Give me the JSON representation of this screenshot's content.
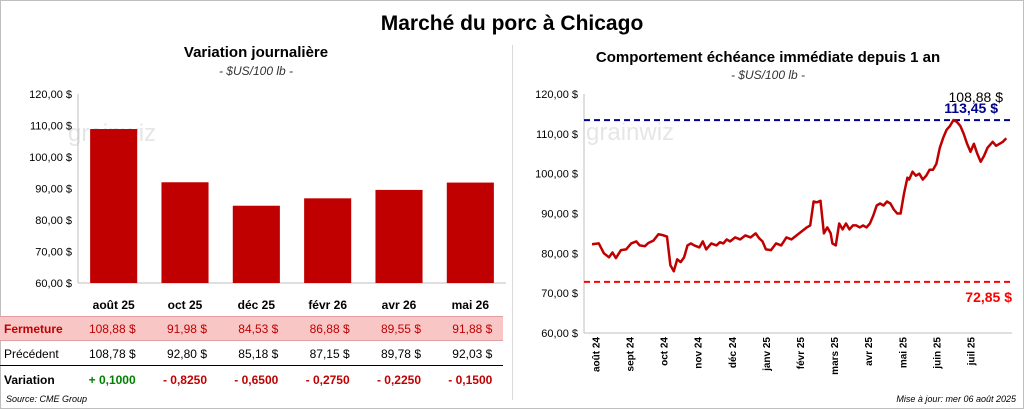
{
  "title": "Marché du porc à Chicago",
  "left": {
    "subtitle": "Variation journalière",
    "unit": "- $US/100 lb -",
    "watermark": "grainwiz"
  },
  "right": {
    "subtitle": "Comportement échéance immédiate depuis 1 an",
    "unit": "- $US/100 lb -",
    "watermark": "grainwiz"
  },
  "table": {
    "close_label": "Fermeture",
    "prev_label": "Précédent",
    "var_label": "Variation",
    "close": [
      "108,88  $",
      "91,98  $",
      "84,53  $",
      "86,88  $",
      "89,55  $",
      "91,88  $"
    ],
    "prev": [
      "108,78  $",
      "92,80  $",
      "85,18  $",
      "87,15  $",
      "89,78  $",
      "92,03  $"
    ],
    "variation": [
      "+ 0,1000",
      "- 0,8250",
      "- 0,6500",
      "- 0,2750",
      "- 0,2250",
      "- 0,1500"
    ]
  },
  "footer": {
    "source": "Source: CME Group",
    "updated": "Mise à jour: mer 06 août 2025"
  },
  "colors": {
    "bar": "#c00000",
    "line": "#c00000",
    "high": "#00008b",
    "low": "#ff0000"
  },
  "chart_data": [
    {
      "type": "bar",
      "title": "Variation journalière",
      "subtitle": "- $US/100 lb -",
      "categories": [
        "août 25",
        "oct 25",
        "déc 25",
        "févr 26",
        "avr 26",
        "mai 26"
      ],
      "values": [
        108.88,
        91.98,
        84.53,
        86.88,
        89.55,
        91.88
      ],
      "ylim": [
        60,
        120
      ],
      "yticks": [
        "60,00 $",
        "70,00 $",
        "80,00 $",
        "90,00 $",
        "100,00 $",
        "110,00 $",
        "120,00 $"
      ],
      "grid": false
    },
    {
      "type": "line",
      "title": "Comportement échéance immédiate depuis 1 an",
      "subtitle": "- $US/100 lb -",
      "ylim": [
        60,
        120
      ],
      "yticks": [
        "60,00 $",
        "70,00 $",
        "80,00 $",
        "90,00 $",
        "100,00 $",
        "110,00 $",
        "120,00 $"
      ],
      "xticks": [
        "août 24",
        "sept 24",
        "oct 24",
        "nov 24",
        "déc 24",
        "janv 25",
        "févr 25",
        "mars 25",
        "avr 25",
        "mai 25",
        "juin 25",
        "juil 25"
      ],
      "high": {
        "value": 113.45,
        "label": "113,45 $"
      },
      "low": {
        "value": 72.85,
        "label": "72,85 $"
      },
      "last": {
        "value": 108.88,
        "label": "108,88 $"
      },
      "series": [
        {
          "values": [
            [
              0,
              82.3
            ],
            [
              0.2,
              82.5
            ],
            [
              0.35,
              80.0
            ],
            [
              0.5,
              79.0
            ],
            [
              0.6,
              80.2
            ],
            [
              0.7,
              78.8
            ],
            [
              0.85,
              80.8
            ],
            [
              1.0,
              81.0
            ],
            [
              1.15,
              82.5
            ],
            [
              1.3,
              83.0
            ],
            [
              1.4,
              82.0
            ],
            [
              1.55,
              81.8
            ],
            [
              1.65,
              82.6
            ],
            [
              1.8,
              83.2
            ],
            [
              1.95,
              84.8
            ],
            [
              2.1,
              84.5
            ],
            [
              2.2,
              84.2
            ],
            [
              2.3,
              77.0
            ],
            [
              2.4,
              75.5
            ],
            [
              2.5,
              78.5
            ],
            [
              2.6,
              77.8
            ],
            [
              2.7,
              79.0
            ],
            [
              2.8,
              82.0
            ],
            [
              2.9,
              82.5
            ],
            [
              3.0,
              82.0
            ],
            [
              3.15,
              81.5
            ],
            [
              3.25,
              83.0
            ],
            [
              3.35,
              81.0
            ],
            [
              3.5,
              82.5
            ],
            [
              3.65,
              82.0
            ],
            [
              3.75,
              82.8
            ],
            [
              3.85,
              82.5
            ],
            [
              3.95,
              83.5
            ],
            [
              4.05,
              83.0
            ],
            [
              4.2,
              84.0
            ],
            [
              4.35,
              83.5
            ],
            [
              4.5,
              84.5
            ],
            [
              4.65,
              84.0
            ],
            [
              4.8,
              85.0
            ],
            [
              4.9,
              83.8
            ],
            [
              5.0,
              83.0
            ],
            [
              5.1,
              81.0
            ],
            [
              5.25,
              80.8
            ],
            [
              5.4,
              82.5
            ],
            [
              5.55,
              82.0
            ],
            [
              5.7,
              84.0
            ],
            [
              5.85,
              83.5
            ],
            [
              6.0,
              84.5
            ],
            [
              6.15,
              85.5
            ],
            [
              6.3,
              86.5
            ],
            [
              6.4,
              87.0
            ],
            [
              6.5,
              93.0
            ],
            [
              6.6,
              92.8
            ],
            [
              6.7,
              93.2
            ],
            [
              6.8,
              85.0
            ],
            [
              6.9,
              86.5
            ],
            [
              7.0,
              85.0
            ],
            [
              7.05,
              82.5
            ],
            [
              7.15,
              82.0
            ],
            [
              7.25,
              87.5
            ],
            [
              7.35,
              86.0
            ],
            [
              7.45,
              87.5
            ],
            [
              7.55,
              86.0
            ],
            [
              7.65,
              87.0
            ],
            [
              7.75,
              87.0
            ],
            [
              7.85,
              86.5
            ],
            [
              7.95,
              87.0
            ],
            [
              8.05,
              86.5
            ],
            [
              8.15,
              87.5
            ],
            [
              8.25,
              89.5
            ],
            [
              8.35,
              92.0
            ],
            [
              8.45,
              92.5
            ],
            [
              8.55,
              92.0
            ],
            [
              8.65,
              93.0
            ],
            [
              8.75,
              92.5
            ],
            [
              8.85,
              91.0
            ],
            [
              8.95,
              90.0
            ],
            [
              9.05,
              90.0
            ],
            [
              9.15,
              95.0
            ],
            [
              9.25,
              99.0
            ],
            [
              9.3,
              98.5
            ],
            [
              9.4,
              100.5
            ],
            [
              9.5,
              99.5
            ],
            [
              9.6,
              100.0
            ],
            [
              9.7,
              98.5
            ],
            [
              9.8,
              99.5
            ],
            [
              9.9,
              101.0
            ],
            [
              10.0,
              101.0
            ],
            [
              10.1,
              102.5
            ],
            [
              10.2,
              106.5
            ],
            [
              10.3,
              109.0
            ],
            [
              10.4,
              111.0
            ],
            [
              10.5,
              112.0
            ],
            [
              10.6,
              113.45
            ],
            [
              10.7,
              113.0
            ],
            [
              10.8,
              112.0
            ],
            [
              10.9,
              110.0
            ],
            [
              11.0,
              107.5
            ],
            [
              11.1,
              105.5
            ],
            [
              11.2,
              107.5
            ],
            [
              11.3,
              105.0
            ],
            [
              11.4,
              103.0
            ],
            [
              11.5,
              104.5
            ],
            [
              11.6,
              106.5
            ],
            [
              11.75,
              108.0
            ],
            [
              11.85,
              107.0
            ],
            [
              11.95,
              107.5
            ],
            [
              12.05,
              108.0
            ],
            [
              12.15,
              108.88
            ]
          ]
        }
      ],
      "grid": false
    }
  ]
}
